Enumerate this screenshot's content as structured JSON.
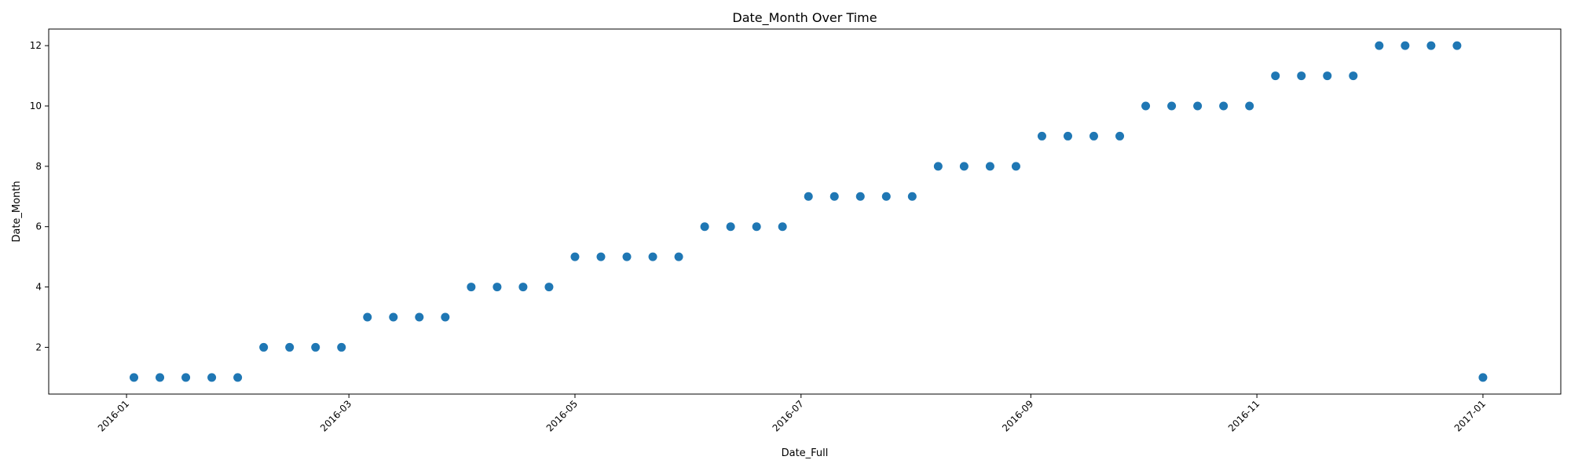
{
  "chart_data": {
    "type": "scatter",
    "title": "Date_Month Over Time",
    "xlabel": "Date_Full",
    "ylabel": "Date_Month",
    "xlim": [
      "2015-12-11",
      "2017-01-22"
    ],
    "ylim": [
      0.45,
      12.55
    ],
    "x_ticks": [
      "2016-01",
      "2016-03",
      "2016-05",
      "2016-07",
      "2016-09",
      "2016-11",
      "2017-01"
    ],
    "y_ticks": [
      2,
      4,
      6,
      8,
      10,
      12
    ],
    "grid": false,
    "marker_color": "#1f77b4",
    "series": [
      {
        "points": [
          {
            "x": "2016-01-03",
            "y": 1
          },
          {
            "x": "2016-01-10",
            "y": 1
          },
          {
            "x": "2016-01-17",
            "y": 1
          },
          {
            "x": "2016-01-24",
            "y": 1
          },
          {
            "x": "2016-01-31",
            "y": 1
          },
          {
            "x": "2016-02-07",
            "y": 2
          },
          {
            "x": "2016-02-14",
            "y": 2
          },
          {
            "x": "2016-02-21",
            "y": 2
          },
          {
            "x": "2016-02-28",
            "y": 2
          },
          {
            "x": "2016-03-06",
            "y": 3
          },
          {
            "x": "2016-03-13",
            "y": 3
          },
          {
            "x": "2016-03-20",
            "y": 3
          },
          {
            "x": "2016-03-27",
            "y": 3
          },
          {
            "x": "2016-04-03",
            "y": 4
          },
          {
            "x": "2016-04-10",
            "y": 4
          },
          {
            "x": "2016-04-17",
            "y": 4
          },
          {
            "x": "2016-04-24",
            "y": 4
          },
          {
            "x": "2016-05-01",
            "y": 5
          },
          {
            "x": "2016-05-08",
            "y": 5
          },
          {
            "x": "2016-05-15",
            "y": 5
          },
          {
            "x": "2016-05-22",
            "y": 5
          },
          {
            "x": "2016-05-29",
            "y": 5
          },
          {
            "x": "2016-06-05",
            "y": 6
          },
          {
            "x": "2016-06-12",
            "y": 6
          },
          {
            "x": "2016-06-19",
            "y": 6
          },
          {
            "x": "2016-06-26",
            "y": 6
          },
          {
            "x": "2016-07-03",
            "y": 7
          },
          {
            "x": "2016-07-10",
            "y": 7
          },
          {
            "x": "2016-07-17",
            "y": 7
          },
          {
            "x": "2016-07-24",
            "y": 7
          },
          {
            "x": "2016-07-31",
            "y": 7
          },
          {
            "x": "2016-08-07",
            "y": 8
          },
          {
            "x": "2016-08-14",
            "y": 8
          },
          {
            "x": "2016-08-21",
            "y": 8
          },
          {
            "x": "2016-08-28",
            "y": 8
          },
          {
            "x": "2016-09-04",
            "y": 9
          },
          {
            "x": "2016-09-11",
            "y": 9
          },
          {
            "x": "2016-09-18",
            "y": 9
          },
          {
            "x": "2016-09-25",
            "y": 9
          },
          {
            "x": "2016-10-02",
            "y": 10
          },
          {
            "x": "2016-10-09",
            "y": 10
          },
          {
            "x": "2016-10-16",
            "y": 10
          },
          {
            "x": "2016-10-23",
            "y": 10
          },
          {
            "x": "2016-10-30",
            "y": 10
          },
          {
            "x": "2016-11-06",
            "y": 11
          },
          {
            "x": "2016-11-13",
            "y": 11
          },
          {
            "x": "2016-11-20",
            "y": 11
          },
          {
            "x": "2016-11-27",
            "y": 11
          },
          {
            "x": "2016-12-04",
            "y": 12
          },
          {
            "x": "2016-12-11",
            "y": 12
          },
          {
            "x": "2016-12-18",
            "y": 12
          },
          {
            "x": "2016-12-25",
            "y": 12
          },
          {
            "x": "2017-01-01",
            "y": 1
          }
        ]
      }
    ]
  }
}
